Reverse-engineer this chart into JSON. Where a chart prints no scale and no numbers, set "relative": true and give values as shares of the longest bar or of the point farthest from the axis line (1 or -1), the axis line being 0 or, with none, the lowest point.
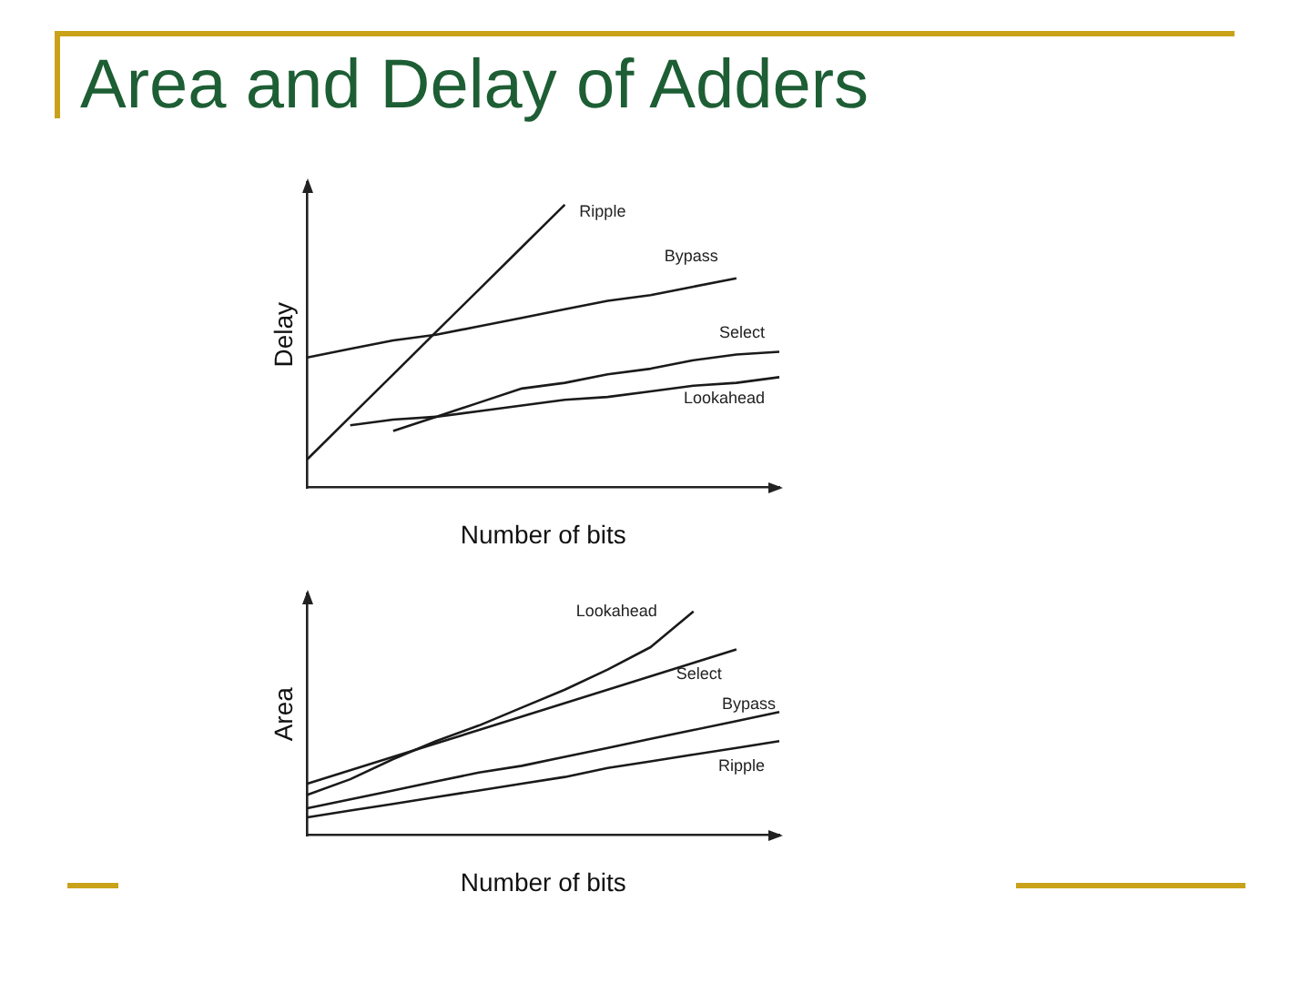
{
  "chart_data": [
    {
      "type": "line",
      "title": "Area and Delay of Adders",
      "relative": true,
      "xlabel": "Number of bits",
      "ylabel": "Delay",
      "grid": false,
      "legend": false,
      "marker": "none",
      "line_style": "solid",
      "categories": [
        null,
        null,
        null,
        null,
        null,
        null,
        null,
        null,
        null,
        null,
        null,
        null
      ],
      "series": [
        {
          "name": "Ripple",
          "color": "#1a1a1a",
          "values": [
            0.1,
            0.25,
            0.4,
            0.55,
            0.7,
            0.85,
            1.0,
            null,
            null,
            null,
            null,
            null
          ]
        },
        {
          "name": "Bypass",
          "color": "#1a1a1a",
          "values": [
            0.46,
            0.49,
            0.52,
            0.54,
            0.57,
            0.6,
            0.63,
            0.66,
            0.68,
            0.71,
            0.74,
            null
          ]
        },
        {
          "name": "Select",
          "color": "#1a1a1a",
          "values": [
            null,
            null,
            0.2,
            0.25,
            0.3,
            0.35,
            0.37,
            0.4,
            0.42,
            0.45,
            0.47,
            0.48
          ]
        },
        {
          "name": "Lookahead",
          "color": "#1a1a1a",
          "values": [
            null,
            0.22,
            0.24,
            0.25,
            0.27,
            0.29,
            0.31,
            0.32,
            0.34,
            0.36,
            0.37,
            0.39
          ]
        }
      ]
    },
    {
      "type": "line",
      "relative": true,
      "xlabel": "Number of bits",
      "ylabel": "Area",
      "grid": false,
      "legend": false,
      "marker": "none",
      "line_style": "solid",
      "categories": [
        null,
        null,
        null,
        null,
        null,
        null,
        null,
        null,
        null,
        null,
        null,
        null
      ],
      "series": [
        {
          "name": "Lookahead",
          "color": "#1a1a1a",
          "values": [
            0.18,
            0.25,
            0.34,
            0.42,
            0.49,
            0.57,
            0.65,
            0.74,
            0.84,
            1.0,
            null,
            null
          ]
        },
        {
          "name": "Select",
          "color": "#1a1a1a",
          "values": [
            0.23,
            0.29,
            0.35,
            0.41,
            0.47,
            0.53,
            0.59,
            0.65,
            0.71,
            0.77,
            0.83,
            null
          ]
        },
        {
          "name": "Bypass",
          "color": "#1a1a1a",
          "values": [
            0.12,
            0.16,
            0.2,
            0.24,
            0.28,
            0.31,
            0.35,
            0.39,
            0.43,
            0.47,
            0.51,
            0.55
          ]
        },
        {
          "name": "Ripple",
          "color": "#1a1a1a",
          "values": [
            0.08,
            0.11,
            0.14,
            0.17,
            0.2,
            0.23,
            0.26,
            0.3,
            0.33,
            0.36,
            0.39,
            0.42
          ]
        }
      ]
    }
  ]
}
